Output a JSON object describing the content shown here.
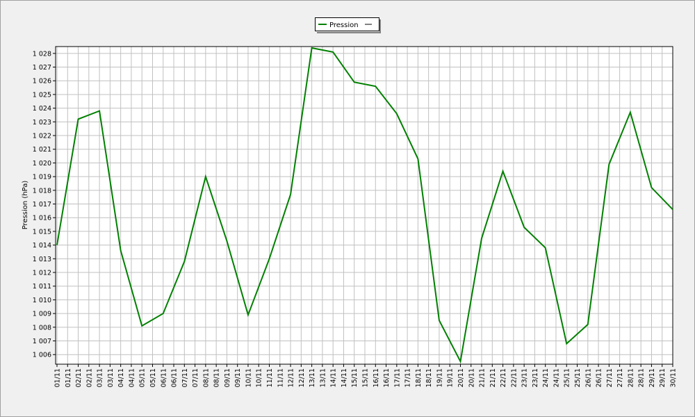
{
  "chart_data": {
    "type": "line",
    "y_label": "Pression (hPa)",
    "x": [
      "01/11",
      "02/11",
      "03/11",
      "04/11",
      "05/11",
      "06/11",
      "07/11",
      "08/11",
      "09/11",
      "10/11",
      "11/11",
      "12/11",
      "13/11",
      "14/11",
      "15/11",
      "16/11",
      "17/11",
      "18/11",
      "19/11",
      "20/11",
      "21/11",
      "22/11",
      "23/11",
      "24/11",
      "25/11",
      "26/11",
      "27/11",
      "28/11",
      "29/11",
      "30/11"
    ],
    "xticks": [
      "01/11",
      "01/11",
      "02/11",
      "02/11",
      "03/11",
      "03/11",
      "04/11",
      "04/11",
      "05/11",
      "05/11",
      "06/11",
      "06/11",
      "07/11",
      "07/11",
      "08/11",
      "08/11",
      "09/11",
      "09/11",
      "10/11",
      "10/11",
      "11/11",
      "11/11",
      "12/11",
      "12/11",
      "13/11",
      "13/11",
      "14/11",
      "14/11",
      "15/11",
      "15/11",
      "16/11",
      "16/11",
      "17/11",
      "17/11",
      "18/11",
      "18/11",
      "19/11",
      "19/11",
      "20/11",
      "20/11",
      "21/11",
      "21/11",
      "22/11",
      "22/11",
      "23/11",
      "23/11",
      "24/11",
      "24/11",
      "25/11",
      "25/11",
      "26/11",
      "26/11",
      "27/11",
      "27/11",
      "28/11",
      "28/11",
      "29/11",
      "29/11",
      "30/11"
    ],
    "series": [
      {
        "name": "Pression",
        "color": "#008000",
        "values": [
          1014.0,
          1023.2,
          1023.8,
          1013.6,
          1008.1,
          1009.0,
          1012.8,
          1019.0,
          1014.3,
          1008.9,
          1013.0,
          1017.7,
          1028.4,
          1028.1,
          1025.9,
          1025.6,
          1023.6,
          1020.3,
          1008.5,
          1005.5,
          1014.5,
          1019.4,
          1015.3,
          1013.8,
          1006.8,
          1008.2,
          1019.9,
          1023.7,
          1018.2,
          1016.6
        ]
      }
    ],
    "ylim": [
      1005.3,
      1028.5
    ],
    "yticks": [
      {
        "value": 1006,
        "label": "1 006"
      },
      {
        "value": 1007,
        "label": "1 007"
      },
      {
        "value": 1008,
        "label": "1 008"
      },
      {
        "value": 1009,
        "label": "1 009"
      },
      {
        "value": 1010,
        "label": "1 010"
      },
      {
        "value": 1011,
        "label": "1 011"
      },
      {
        "value": 1012,
        "label": "1 012"
      },
      {
        "value": 1013,
        "label": "1 013"
      },
      {
        "value": 1014,
        "label": "1 014"
      },
      {
        "value": 1015,
        "label": "1 015"
      },
      {
        "value": 1016,
        "label": "1 016"
      },
      {
        "value": 1017,
        "label": "1 017"
      },
      {
        "value": 1018,
        "label": "1 018"
      },
      {
        "value": 1019,
        "label": "1 019"
      },
      {
        "value": 1020,
        "label": "1 020"
      },
      {
        "value": 1021,
        "label": "1 021"
      },
      {
        "value": 1022,
        "label": "1 022"
      },
      {
        "value": 1023,
        "label": "1 023"
      },
      {
        "value": 1024,
        "label": "1 024"
      },
      {
        "value": 1025,
        "label": "1 025"
      },
      {
        "value": 1026,
        "label": "1 026"
      },
      {
        "value": 1027,
        "label": "1 027"
      },
      {
        "value": 1028,
        "label": "1 028"
      }
    ],
    "grid": true
  }
}
